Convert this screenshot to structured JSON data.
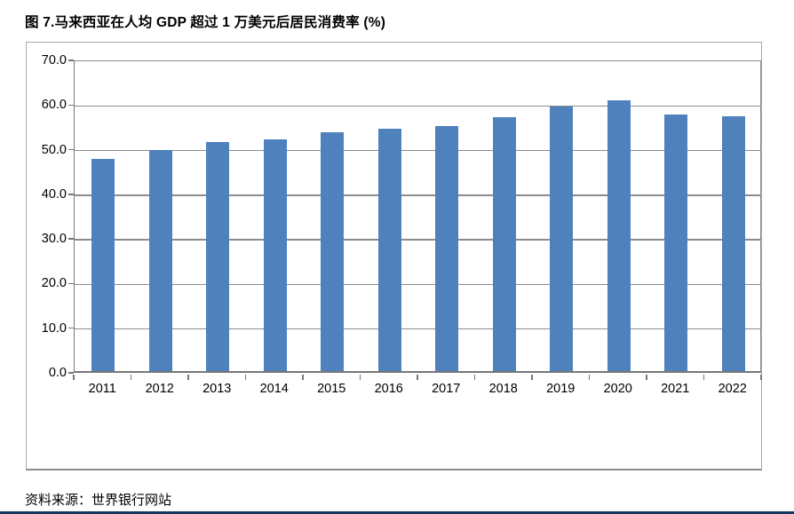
{
  "title": "图 7.马来西亚在人均 GDP 超过 1 万美元后居民消费率 (%)",
  "source": "资料来源：世界银行网站",
  "colors": {
    "bar": "#4F81BD",
    "gridline": "#8C8C8C",
    "axis": "#777777",
    "frame_border": "#A8A8A8",
    "bottom_rule": "#17365D",
    "text": "#000000"
  },
  "chart_data": {
    "type": "bar",
    "title": "图 7.马来西亚在人均 GDP 超过 1 万美元后居民消费率 (%)",
    "categories": [
      "2011",
      "2012",
      "2013",
      "2014",
      "2015",
      "2016",
      "2017",
      "2018",
      "2019",
      "2020",
      "2021",
      "2022"
    ],
    "values": [
      48.0,
      50.0,
      51.7,
      52.4,
      54.0,
      54.8,
      55.3,
      57.4,
      59.8,
      61.2,
      58.0,
      57.6
    ],
    "xlabel": "",
    "ylabel": "",
    "ylim": [
      0,
      70
    ],
    "ytick_step": 10,
    "ytick_labels": [
      "70.0",
      "60.0",
      "50.0",
      "40.0",
      "30.0",
      "20.0",
      "10.0",
      "0.0"
    ],
    "grid": true,
    "legend": "none",
    "source_note": "资料来源：世界银行网站"
  }
}
